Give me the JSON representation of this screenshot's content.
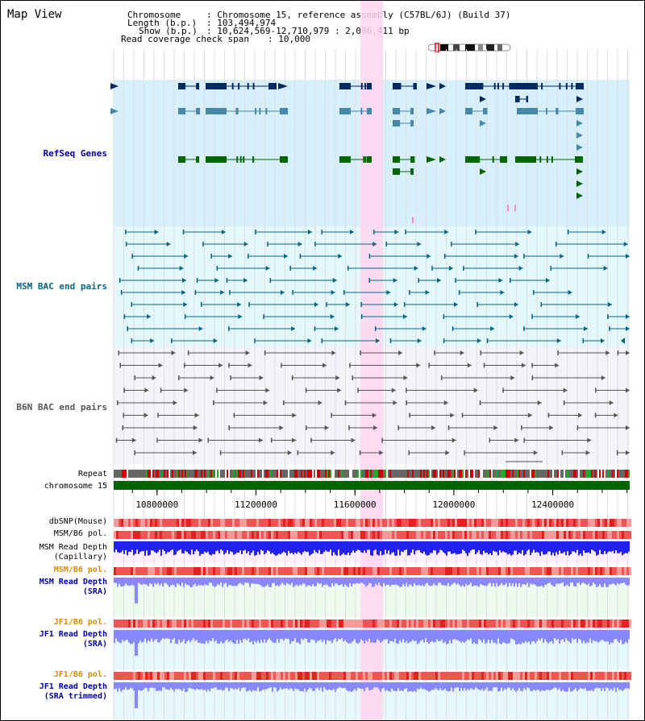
{
  "header": {
    "title": "Map View",
    "info_lines": [
      {
        "key": "Chromosome",
        "value": ": Chromosome 15, reference assembly (C57BL/6J) (Build 37)"
      },
      {
        "key": "Length (b.p.)",
        "value": ": 103,494,974"
      },
      {
        "key": "Show (b.p.)",
        "value": ": 10,624,569-12,710,979 : 2,086,411 bp"
      },
      {
        "key": "Read coverage check span",
        "value": ": 10,000"
      }
    ]
  },
  "axis": {
    "view_start": 10624569,
    "view_end": 12710979,
    "ticks": [
      "10800000",
      "11200000",
      "11600000",
      "12000000",
      "12400000"
    ],
    "tick_values": [
      10800000,
      11200000,
      11600000,
      12000000,
      12400000
    ]
  },
  "tracks": {
    "refseq": {
      "label": "RefSeq Genes",
      "color": "#0000aa"
    },
    "msm_bac": {
      "label": "MSM BAC end pairs",
      "color": "#006688"
    },
    "b6n_bac": {
      "label": "B6N BAC end pairs",
      "color": "#555555"
    },
    "repeat": {
      "label": "Repeat"
    },
    "chromosome": {
      "label": "chromosome 15"
    },
    "dbsnp": {
      "label": "dbSNP(Mouse)"
    },
    "msm_b6_pol": {
      "label": "MSM/B6 pol."
    },
    "msm_depth_cap": {
      "line1": "MSM Read Depth",
      "line2": "(Capillary)"
    },
    "msm_b6_pol2": {
      "label": "MSM/B6 pol.",
      "color": "#e08800"
    },
    "msm_depth_sra": {
      "line1": "MSM Read Depth",
      "line2": "(SRA)",
      "color": "#0000aa"
    },
    "jf1_b6_pol": {
      "label": "JF1/B6 pol.",
      "color": "#e08800"
    },
    "jf1_depth_sra": {
      "line1": "JF1 Read Depth",
      "line2": "(SRA)",
      "color": "#0000aa"
    },
    "jf1_b6_pol2": {
      "label": "JF1/B6 pol.",
      "color": "#e08800"
    },
    "jf1_depth_trim": {
      "line1": "JF1 Read Depth",
      "line2": "(SRA trimmed)",
      "color": "#0000aa"
    }
  },
  "colors": {
    "refseq_bg": "#d6effa",
    "msm_bg": "#e4f8fb",
    "b6n_bg": "#f4f4f8",
    "highlight": "#ffd6f0",
    "chromosome": "#006600",
    "depth_cap": "#2222ee",
    "depth_sra": "#8888ff",
    "pol_red": "#ee3333"
  }
}
